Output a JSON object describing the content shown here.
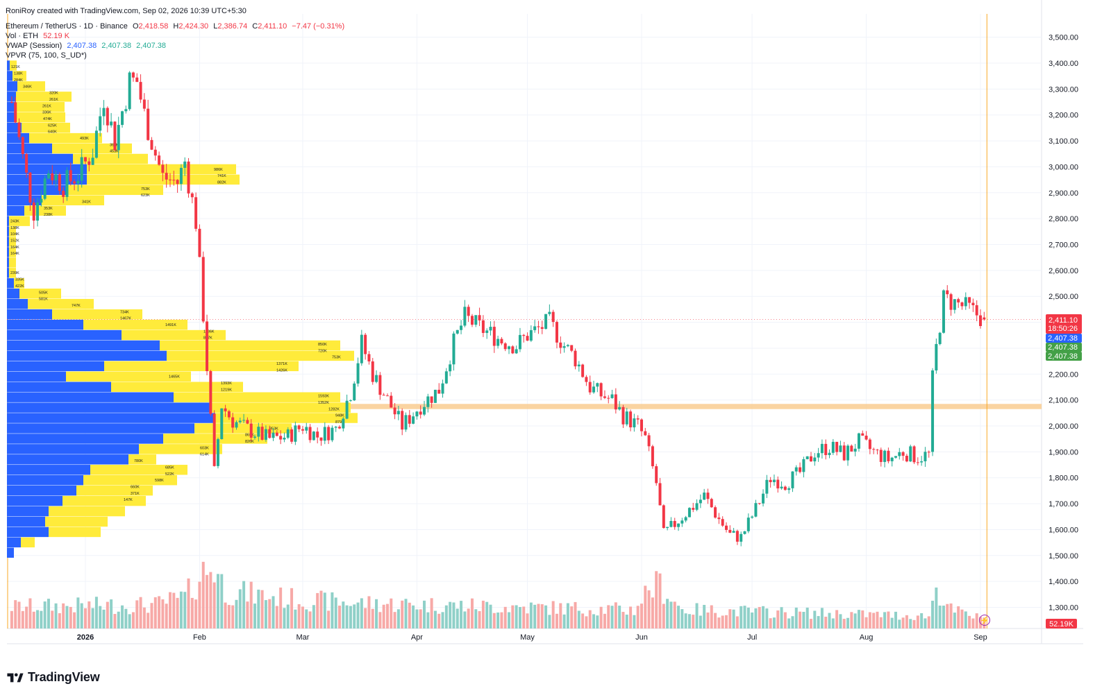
{
  "credit": "RoniRoy created with TradingView.com, Sep 02, 2026 10:39 UTC+5:30",
  "legend": {
    "symbol": "Ethereum / TetherUS · 1D · Binance",
    "o_label": "O",
    "o": "2,418.58",
    "h_label": "H",
    "h": "2,424.30",
    "l_label": "L",
    "l": "2,386.74",
    "c_label": "C",
    "c": "2,411.10",
    "change": "−7.47 (−0.31%)",
    "vol_label": "Vol · ETH",
    "vol": "52.19 K",
    "vwap_label": "VWAP (Session)",
    "vwap": [
      "2,407.38",
      "2,407.38",
      "2,407.38"
    ],
    "vpvr_label": "VPVR (75, 100, S_UD*)"
  },
  "logo_text": "TradingView",
  "price_badges": {
    "last": "2,411.10",
    "countdown": "18:50:26",
    "vwap": "2,407.38",
    "vwap2": "2,407.38",
    "vwap3": "2,407.38",
    "volume": "52.19K"
  },
  "colors": {
    "up": "#22ab94",
    "down": "#f23645",
    "vol_up": "#8fd0c8",
    "vol_down": "#f7a9a7",
    "vp_up": "#2962ff",
    "vp_down": "#ffeb3b",
    "zone": "#f9c98a",
    "cursor": "#f9a825"
  },
  "chart_data": {
    "type": "candlestick",
    "title": "Ethereum / TetherUS · 1D · Binance",
    "y_ticks": [
      "3,500.00",
      "3,400.00",
      "3,300.00",
      "3,200.00",
      "3,100.00",
      "3,000.00",
      "2,900.00",
      "2,800.00",
      "2,700.00",
      "2,600.00",
      "2,500.00",
      "2,400.00",
      "2,300.00",
      "2,200.00",
      "2,100.00",
      "2,000.00",
      "1,900.00",
      "1,800.00",
      "1,700.00",
      "1,600.00",
      "1,500.00",
      "1,400.00",
      "1,300.00"
    ],
    "ylim": [
      1237,
      3560
    ],
    "x_ticks": [
      "2026",
      "Feb",
      "Mar",
      "Apr",
      "May",
      "Jun",
      "Jul",
      "Aug",
      "Sep"
    ],
    "x_tick_dates": [
      "2026-01-01",
      "2026-02-01",
      "2026-03-01",
      "2026-04-01",
      "2026-05-01",
      "2026-06-01",
      "2026-07-01",
      "2026-08-01",
      "2026-09-01"
    ],
    "start_date": "2025-12-12",
    "end_date": "2026-09-02",
    "support_zone": [
      2065,
      2085
    ],
    "path_points": [
      [
        "2025-12-12",
        3250
      ],
      [
        "2025-12-16",
        2960
      ],
      [
        "2025-12-18",
        2830
      ],
      [
        "2025-12-22",
        2990
      ],
      [
        "2025-12-26",
        2930
      ],
      [
        "2025-12-30",
        2970
      ],
      [
        "2026-01-03",
        3060
      ],
      [
        "2026-01-06",
        3270
      ],
      [
        "2026-01-09",
        3100
      ],
      [
        "2026-01-13",
        3330
      ],
      [
        "2026-01-15",
        3330
      ],
      [
        "2026-01-17",
        3200
      ],
      [
        "2026-01-20",
        3050
      ],
      [
        "2026-01-22",
        2960
      ],
      [
        "2026-01-26",
        2940
      ],
      [
        "2026-01-28",
        3020
      ],
      [
        "2026-01-31",
        2790
      ],
      [
        "2026-02-02",
        2430
      ],
      [
        "2026-02-05",
        1820
      ],
      [
        "2026-02-07",
        2080
      ],
      [
        "2026-02-10",
        2020
      ],
      [
        "2026-02-15",
        1980
      ],
      [
        "2026-02-20",
        1950
      ],
      [
        "2026-02-25",
        1960
      ],
      [
        "2026-03-01",
        2000
      ],
      [
        "2026-03-05",
        1960
      ],
      [
        "2026-03-10",
        1990
      ],
      [
        "2026-03-14",
        2130
      ],
      [
        "2026-03-17",
        2320
      ],
      [
        "2026-03-20",
        2200
      ],
      [
        "2026-03-24",
        2100
      ],
      [
        "2026-03-28",
        2000
      ],
      [
        "2026-04-02",
        2080
      ],
      [
        "2026-04-07",
        2140
      ],
      [
        "2026-04-11",
        2320
      ],
      [
        "2026-04-14",
        2420
      ],
      [
        "2026-04-18",
        2380
      ],
      [
        "2026-04-24",
        2330
      ],
      [
        "2026-04-28",
        2310
      ],
      [
        "2026-05-01",
        2350
      ],
      [
        "2026-05-07",
        2400
      ],
      [
        "2026-05-11",
        2310
      ],
      [
        "2026-05-14",
        2260
      ],
      [
        "2026-05-18",
        2150
      ],
      [
        "2026-05-21",
        2120
      ],
      [
        "2026-05-24",
        2100
      ],
      [
        "2026-05-27",
        2040
      ],
      [
        "2026-05-31",
        2000
      ],
      [
        "2026-06-02",
        1950
      ],
      [
        "2026-06-05",
        1780
      ],
      [
        "2026-06-07",
        1580
      ],
      [
        "2026-06-12",
        1650
      ],
      [
        "2026-06-15",
        1690
      ],
      [
        "2026-06-18",
        1730
      ],
      [
        "2026-06-22",
        1640
      ],
      [
        "2026-06-25",
        1580
      ],
      [
        "2026-06-28",
        1570
      ],
      [
        "2026-07-02",
        1680
      ],
      [
        "2026-07-06",
        1800
      ],
      [
        "2026-07-10",
        1780
      ],
      [
        "2026-07-14",
        1820
      ],
      [
        "2026-07-18",
        1900
      ],
      [
        "2026-07-22",
        1920
      ],
      [
        "2026-07-26",
        1890
      ],
      [
        "2026-07-30",
        1940
      ],
      [
        "2026-08-03",
        1900
      ],
      [
        "2026-08-07",
        1870
      ],
      [
        "2026-08-11",
        1900
      ],
      [
        "2026-08-15",
        1880
      ],
      [
        "2026-08-18",
        1890
      ],
      [
        "2026-08-19",
        2180
      ],
      [
        "2026-08-20",
        2300
      ],
      [
        "2026-08-22",
        2490
      ],
      [
        "2026-08-26",
        2470
      ],
      [
        "2026-08-29",
        2450
      ],
      [
        "2026-09-02",
        2411
      ]
    ],
    "vol_path": [
      [
        "2025-12-12",
        0.35
      ],
      [
        "2026-01-20",
        0.38
      ],
      [
        "2026-01-28",
        0.5
      ],
      [
        "2026-02-02",
        0.9
      ],
      [
        "2026-02-05",
        1.0
      ],
      [
        "2026-02-08",
        0.6
      ],
      [
        "2026-03-01",
        0.45
      ],
      [
        "2026-03-20",
        0.4
      ],
      [
        "2026-05-30",
        0.3
      ],
      [
        "2026-06-03",
        0.65
      ],
      [
        "2026-06-06",
        0.7
      ],
      [
        "2026-06-12",
        0.3
      ],
      [
        "2026-08-18",
        0.2
      ],
      [
        "2026-08-20",
        0.65
      ],
      [
        "2026-08-24",
        0.3
      ],
      [
        "2026-09-02",
        0.15
      ]
    ],
    "vpvr": {
      "up": [
        [
          3390,
          4
        ],
        [
          3350,
          8
        ],
        [
          3310,
          15
        ],
        [
          3270,
          13
        ],
        [
          3230,
          13
        ],
        [
          3190,
          14
        ],
        [
          3150,
          21
        ],
        [
          3110,
          32
        ],
        [
          3070,
          65
        ],
        [
          3030,
          95
        ],
        [
          2990,
          115
        ],
        [
          2950,
          115
        ],
        [
          2910,
          85
        ],
        [
          2870,
          50
        ],
        [
          2830,
          25
        ],
        [
          2790,
          3
        ],
        [
          2750,
          3
        ],
        [
          2710,
          3
        ],
        [
          2670,
          3
        ],
        [
          2630,
          3
        ],
        [
          2590,
          3
        ],
        [
          2550,
          10
        ],
        [
          2510,
          18
        ],
        [
          2470,
          30
        ],
        [
          2430,
          65
        ],
        [
          2390,
          110
        ],
        [
          2350,
          165
        ],
        [
          2310,
          220
        ],
        [
          2270,
          230
        ],
        [
          2230,
          140
        ],
        [
          2190,
          85
        ],
        [
          2150,
          150
        ],
        [
          2110,
          240
        ],
        [
          2070,
          295
        ],
        [
          2030,
          300
        ],
        [
          1990,
          270
        ],
        [
          1950,
          225
        ],
        [
          1910,
          190
        ],
        [
          1870,
          175
        ],
        [
          1830,
          120
        ],
        [
          1790,
          110
        ],
        [
          1750,
          100
        ],
        [
          1710,
          80
        ],
        [
          1670,
          60
        ],
        [
          1630,
          55
        ],
        [
          1590,
          60
        ],
        [
          1550,
          20
        ],
        [
          1510,
          10
        ]
      ],
      "down": [
        [
          3390,
          10
        ],
        [
          3350,
          20
        ],
        [
          3310,
          40
        ],
        [
          3270,
          80
        ],
        [
          3230,
          70
        ],
        [
          3190,
          70
        ],
        [
          3150,
          70
        ],
        [
          3110,
          105
        ],
        [
          3070,
          115
        ],
        [
          3030,
          108
        ],
        [
          2990,
          215
        ],
        [
          2950,
          220
        ],
        [
          2910,
          140
        ],
        [
          2870,
          90
        ],
        [
          2830,
          60
        ],
        [
          2790,
          30
        ],
        [
          2750,
          10
        ],
        [
          2710,
          10
        ],
        [
          2670,
          10
        ],
        [
          2630,
          10
        ],
        [
          2590,
          10
        ],
        [
          2550,
          15
        ],
        [
          2510,
          60
        ],
        [
          2470,
          95
        ],
        [
          2430,
          130
        ],
        [
          2390,
          150
        ],
        [
          2350,
          150
        ],
        [
          2310,
          260
        ],
        [
          2270,
          270
        ],
        [
          2230,
          280
        ],
        [
          2190,
          180
        ],
        [
          2150,
          190
        ],
        [
          2110,
          240
        ],
        [
          2070,
          200
        ],
        [
          2030,
          205
        ],
        [
          1990,
          140
        ],
        [
          1950,
          150
        ],
        [
          1910,
          120
        ],
        [
          1870,
          40
        ],
        [
          1830,
          140
        ],
        [
          1790,
          135
        ],
        [
          1750,
          110
        ],
        [
          1710,
          120
        ],
        [
          1670,
          110
        ],
        [
          1630,
          90
        ],
        [
          1590,
          75
        ],
        [
          1550,
          20
        ],
        [
          1510,
          0
        ]
      ],
      "labels": [
        [
          3386,
          "121K"
        ],
        [
          3361,
          "138K"
        ],
        [
          3336,
          "284K"
        ],
        [
          3311,
          "346K"
        ],
        [
          3286,
          "320K"
        ],
        [
          3261,
          "261K"
        ],
        [
          3236,
          "261K"
        ],
        [
          3211,
          "336K"
        ],
        [
          3186,
          "474K"
        ],
        [
          3161,
          "625K"
        ],
        [
          3136,
          "640K"
        ],
        [
          3111,
          "493K"
        ],
        [
          3086,
          "362K"
        ],
        [
          3061,
          "453K"
        ],
        [
          2991,
          "986K"
        ],
        [
          2966,
          "741K"
        ],
        [
          2941,
          "882K"
        ],
        [
          2916,
          "753K"
        ],
        [
          2891,
          "623K"
        ],
        [
          2866,
          "341K"
        ],
        [
          2841,
          "353K"
        ],
        [
          2816,
          "238K"
        ],
        [
          2791,
          "243K"
        ],
        [
          2766,
          "138K"
        ],
        [
          2741,
          "104K"
        ],
        [
          2716,
          "152K"
        ],
        [
          2691,
          "164K"
        ],
        [
          2666,
          "164K"
        ],
        [
          2591,
          "239K"
        ],
        [
          2566,
          "335K"
        ],
        [
          2541,
          "422K"
        ],
        [
          2516,
          "505K"
        ],
        [
          2491,
          "581K"
        ],
        [
          2466,
          "747K"
        ],
        [
          2441,
          "734K"
        ],
        [
          2416,
          "1467K"
        ],
        [
          2391,
          "1491K"
        ],
        [
          2366,
          "1186K"
        ],
        [
          2341,
          "847K"
        ],
        [
          2316,
          "850K"
        ],
        [
          2291,
          "720K"
        ],
        [
          2266,
          "753K"
        ],
        [
          2241,
          "1371K"
        ],
        [
          2216,
          "1426K"
        ],
        [
          2191,
          "1465K"
        ],
        [
          2166,
          "1393K"
        ],
        [
          2141,
          "1219K"
        ],
        [
          2116,
          "1593K"
        ],
        [
          2091,
          "1352K"
        ],
        [
          2066,
          "1282K"
        ],
        [
          2041,
          "948K"
        ],
        [
          2016,
          "879K"
        ],
        [
          1991,
          "853K"
        ],
        [
          1966,
          "865K"
        ],
        [
          1941,
          "826K"
        ],
        [
          1916,
          "603K"
        ],
        [
          1891,
          "614K"
        ],
        [
          1866,
          "780K"
        ],
        [
          1841,
          "685K"
        ],
        [
          1816,
          "522K"
        ],
        [
          1791,
          "598K"
        ],
        [
          1766,
          "660K"
        ],
        [
          1741,
          "371K"
        ],
        [
          1716,
          "147K"
        ]
      ]
    }
  }
}
